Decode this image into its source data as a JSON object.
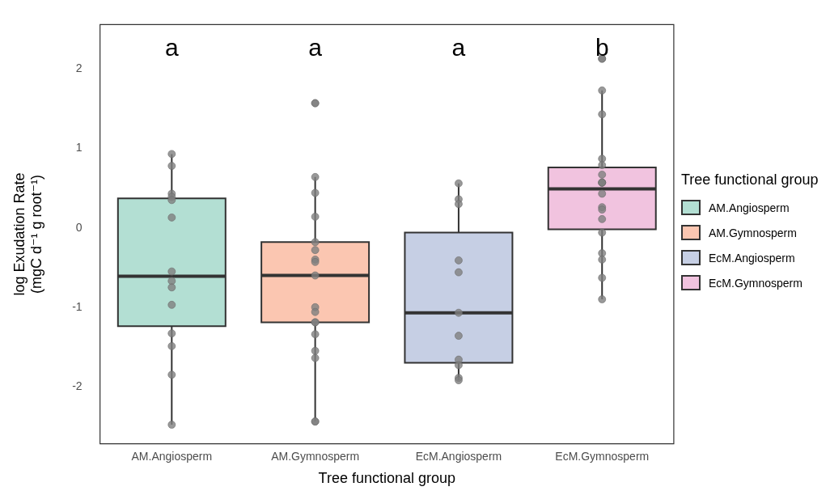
{
  "chart_data": {
    "type": "box",
    "xlabel": "Tree functional group",
    "ylabel": "log Exudation Rate\n(mgC d⁻¹ g root⁻¹)",
    "legend_title": "Tree functional group",
    "legend": "right",
    "grid": false,
    "categories": [
      "AM.Angiosperm",
      "AM.Gymnosperm",
      "EcM.Angiosperm",
      "EcM.Gymnosperm"
    ],
    "ylim": [
      -2.72,
      2.56
    ],
    "yticks": [
      -2,
      -1,
      0,
      1,
      2
    ],
    "series": [
      {
        "name": "AM.Angiosperm",
        "color": "#b3dfd3",
        "boxes": [
          {
            "low": -2.48,
            "q1": -1.24,
            "median": -0.61,
            "q3": 0.37,
            "high": 0.93
          },
          null,
          null,
          null
        ]
      },
      {
        "name": "AM.Gymnosperm",
        "color": "#fbc6b1",
        "boxes": [
          null,
          {
            "low": -2.44,
            "q1": -1.19,
            "median": -0.6,
            "q3": -0.18,
            "high": 0.64
          },
          null,
          null
        ]
      },
      {
        "name": "EcM.Angiosperm",
        "color": "#c6cfe4",
        "boxes": [
          null,
          null,
          {
            "low": -1.92,
            "q1": -1.7,
            "median": -1.07,
            "q3": -0.06,
            "high": 0.56
          },
          null
        ]
      },
      {
        "name": "EcM.Gymnosperm",
        "color": "#f1c3df",
        "boxes": [
          null,
          null,
          null,
          {
            "low": -0.9,
            "q1": -0.02,
            "median": 0.49,
            "q3": 0.76,
            "high": 1.73
          }
        ]
      },
      {
        "type": "scatter",
        "color": "#7f7f7f",
        "x": [
          "AM.Angiosperm",
          "AM.Angiosperm",
          "AM.Angiosperm",
          "AM.Angiosperm",
          "AM.Angiosperm",
          "AM.Angiosperm",
          "AM.Angiosperm",
          "AM.Angiosperm",
          "AM.Angiosperm",
          "AM.Angiosperm",
          "AM.Angiosperm",
          "AM.Angiosperm",
          "AM.Angiosperm",
          "AM.Angiosperm",
          "AM.Gymnosperm",
          "AM.Gymnosperm",
          "AM.Gymnosperm",
          "AM.Gymnosperm",
          "AM.Gymnosperm",
          "AM.Gymnosperm",
          "AM.Gymnosperm",
          "AM.Gymnosperm",
          "AM.Gymnosperm",
          "AM.Gymnosperm",
          "AM.Gymnosperm",
          "AM.Gymnosperm",
          "AM.Gymnosperm",
          "AM.Gymnosperm",
          "AM.Gymnosperm",
          "AM.Gymnosperm",
          "AM.Gymnosperm",
          "AM.Gymnosperm",
          "AM.Gymnosperm",
          "EcM.Angiosperm",
          "EcM.Angiosperm",
          "EcM.Angiosperm",
          "EcM.Angiosperm",
          "EcM.Angiosperm",
          "EcM.Angiosperm",
          "EcM.Angiosperm",
          "EcM.Angiosperm",
          "EcM.Angiosperm",
          "EcM.Angiosperm",
          "EcM.Angiosperm",
          "EcM.Gymnosperm",
          "EcM.Gymnosperm",
          "EcM.Gymnosperm",
          "EcM.Gymnosperm",
          "EcM.Gymnosperm",
          "EcM.Gymnosperm",
          "EcM.Gymnosperm",
          "EcM.Gymnosperm",
          "EcM.Gymnosperm",
          "EcM.Gymnosperm",
          "EcM.Gymnosperm",
          "EcM.Gymnosperm",
          "EcM.Gymnosperm",
          "EcM.Gymnosperm",
          "EcM.Gymnosperm",
          "EcM.Gymnosperm",
          "EcM.Gymnosperm",
          "EcM.Gymnosperm",
          "EcM.Gymnosperm"
        ],
        "values": [
          0.93,
          0.78,
          0.43,
          0.39,
          0.35,
          0.13,
          -0.55,
          -0.67,
          -0.75,
          -0.97,
          -1.33,
          -1.49,
          -1.85,
          -2.48,
          1.57,
          1.57,
          0.64,
          0.44,
          0.14,
          -0.18,
          -0.28,
          -0.4,
          -0.43,
          -0.6,
          -1.0,
          -1.06,
          -1.19,
          -1.19,
          -1.34,
          -1.55,
          -1.64,
          -2.44,
          -2.44,
          0.56,
          0.36,
          0.3,
          -0.41,
          -0.56,
          -1.07,
          -1.36,
          -1.66,
          -1.73,
          -1.89,
          -1.92,
          2.13,
          2.13,
          1.73,
          1.43,
          0.87,
          0.79,
          0.67,
          0.57,
          0.57,
          0.43,
          0.26,
          0.23,
          0.11,
          -0.06,
          -0.32,
          -0.4,
          -0.63,
          -0.9,
          0.57
        ]
      }
    ],
    "annotations": [
      "a",
      "a",
      "a",
      "b"
    ]
  }
}
